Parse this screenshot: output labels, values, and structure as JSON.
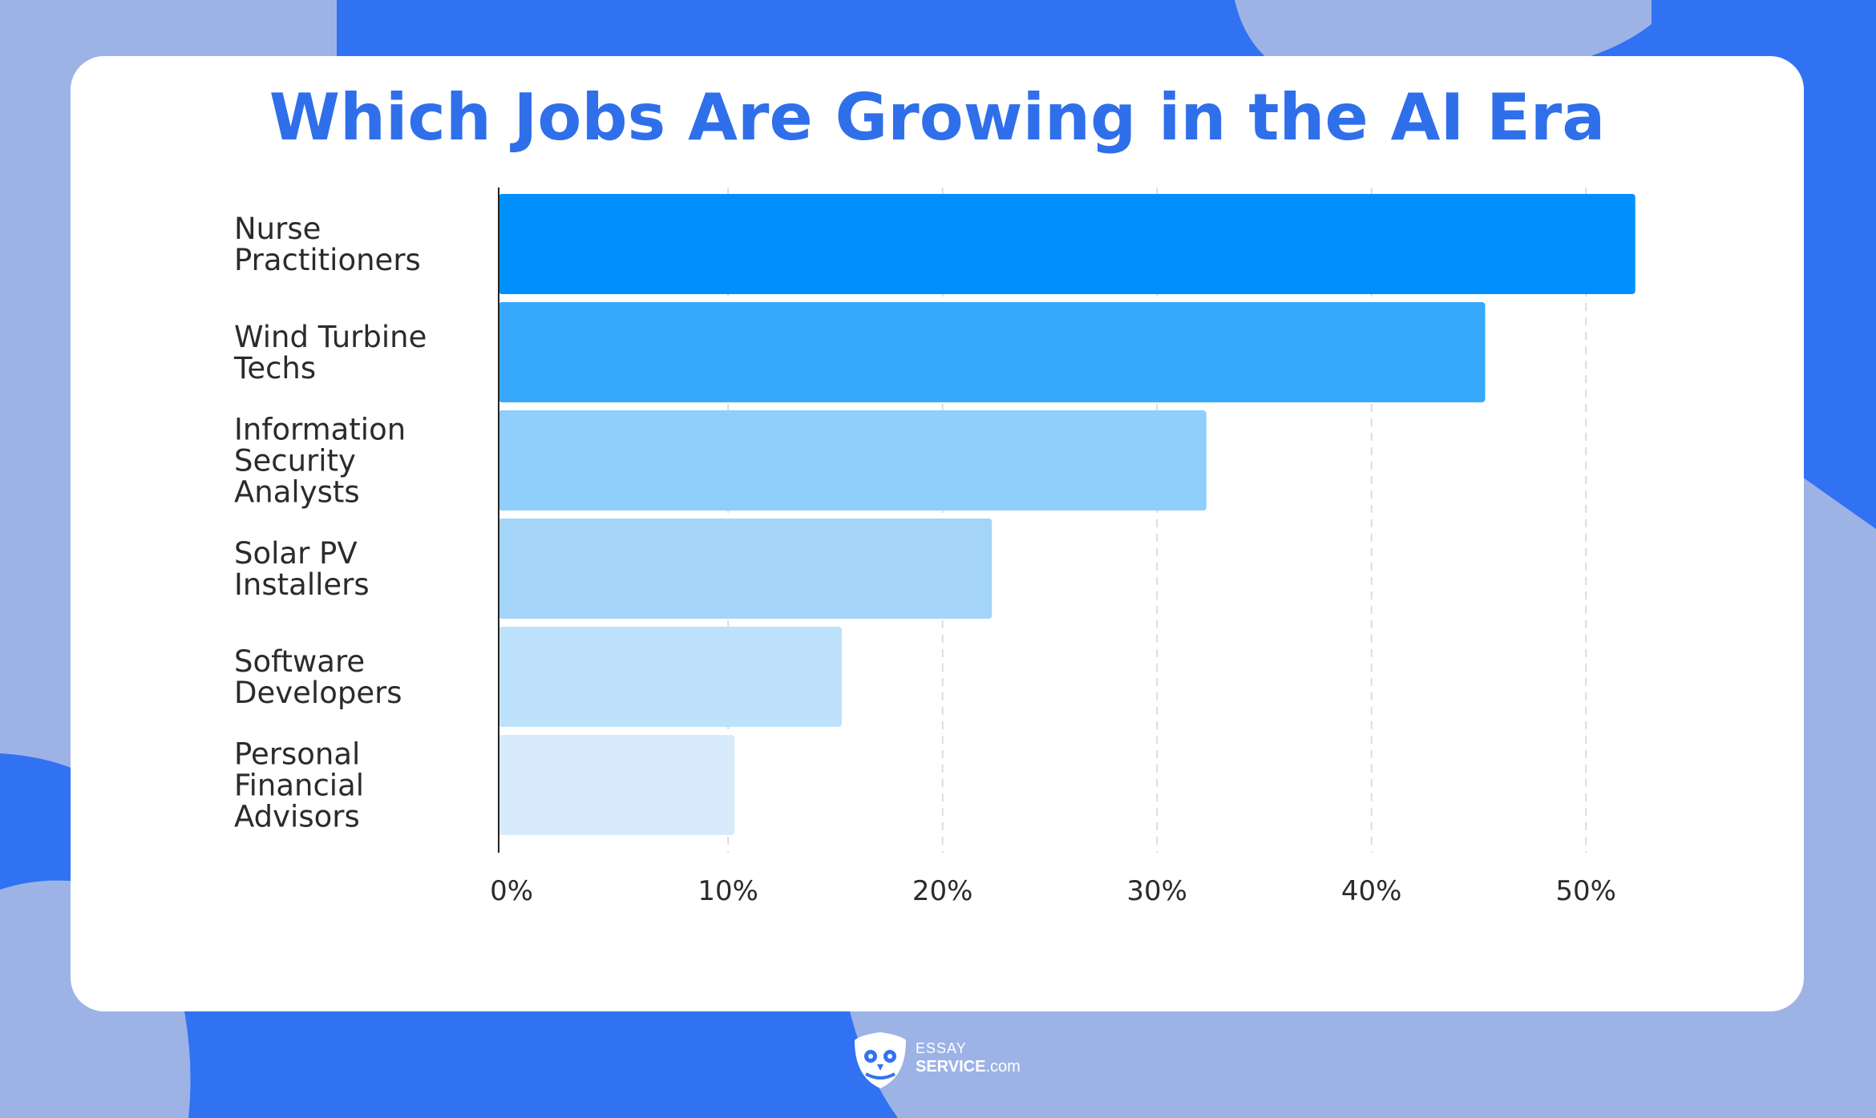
{
  "chart_data": {
    "type": "bar",
    "orientation": "horizontal",
    "title": "Which Jobs Are Growing in the AI Era",
    "categories": [
      "Nurse\nPractitioners",
      "Wind Turbine\nTechs",
      "Information\nSecurity\nAnalysts",
      "Solar PV\nInstallers",
      "Software\nDevelopers",
      "Personal\nFinancial\nAdvisors"
    ],
    "values": [
      53,
      46,
      33,
      23,
      16,
      11
    ],
    "colors": [
      "#0090fd",
      "#36a9fd",
      "#8fcefd",
      "#a4d4f8",
      "#bfe2fc",
      "#d8ebfd"
    ],
    "xlabel": "",
    "ylabel": "",
    "xlim": [
      0,
      53
    ],
    "ticks": [
      {
        "value": 0.6,
        "label": "0%"
      },
      {
        "value": 10.7,
        "label": "10%"
      },
      {
        "value": 20.7,
        "label": "20%"
      },
      {
        "value": 30.7,
        "label": "30%"
      },
      {
        "value": 40.7,
        "label": "40%"
      },
      {
        "value": 50.7,
        "label": "50%"
      }
    ],
    "grid": true
  },
  "brand": {
    "top": "ESSAY",
    "bottom_bold": "SERVICE",
    "bottom_suffix": ".com"
  },
  "colors": {
    "title": "#2f6fea",
    "background": "#9db3e6",
    "accent_blue": "#3172f2"
  }
}
